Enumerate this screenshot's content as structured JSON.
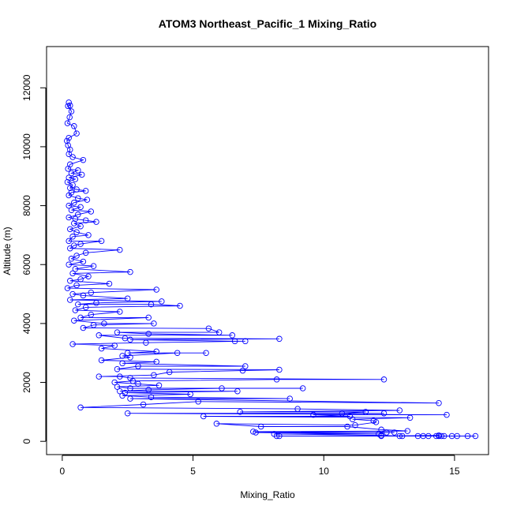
{
  "chart_data": {
    "type": "scatter",
    "title": "ATOM3 Northeast_Pacific_1 Mixing_Ratio",
    "xlabel": "Mixing_Ratio",
    "ylabel": "Altitude (m)",
    "xlim": [
      -0.6,
      16.3
    ],
    "ylim": [
      -450,
      13400
    ],
    "x_ticks": [
      0,
      5,
      10,
      15
    ],
    "y_ticks": [
      0,
      2000,
      4000,
      6000,
      8000,
      10000,
      12000
    ],
    "grid": false,
    "legend": "none",
    "style": {
      "color": "#0000ff",
      "marker": "open-circle",
      "connected": true
    },
    "series": [
      {
        "values_xy": [
          [
            0.25,
            11500
          ],
          [
            0.3,
            11400
          ],
          [
            0.22,
            11380
          ],
          [
            0.35,
            11200
          ],
          [
            0.28,
            11000
          ],
          [
            0.2,
            10800
          ],
          [
            0.45,
            10700
          ],
          [
            0.55,
            10450
          ],
          [
            0.25,
            10300
          ],
          [
            0.18,
            10200
          ],
          [
            0.22,
            10050
          ],
          [
            0.3,
            9900
          ],
          [
            0.25,
            9750
          ],
          [
            0.4,
            9650
          ],
          [
            0.8,
            9550
          ],
          [
            0.3,
            9400
          ],
          [
            0.22,
            9250
          ],
          [
            0.6,
            9200
          ],
          [
            0.35,
            9100
          ],
          [
            0.75,
            9050
          ],
          [
            0.25,
            8950
          ],
          [
            0.5,
            8900
          ],
          [
            0.2,
            8800
          ],
          [
            0.4,
            8700
          ],
          [
            0.3,
            8600
          ],
          [
            0.55,
            8550
          ],
          [
            0.9,
            8500
          ],
          [
            0.35,
            8450
          ],
          [
            0.25,
            8350
          ],
          [
            0.6,
            8250
          ],
          [
            0.95,
            8200
          ],
          [
            0.45,
            8100
          ],
          [
            0.25,
            8000
          ],
          [
            0.7,
            7950
          ],
          [
            0.35,
            7850
          ],
          [
            1.1,
            7800
          ],
          [
            0.6,
            7700
          ],
          [
            0.25,
            7600
          ],
          [
            0.5,
            7550
          ],
          [
            0.9,
            7500
          ],
          [
            1.3,
            7450
          ],
          [
            0.45,
            7400
          ],
          [
            0.7,
            7300
          ],
          [
            0.3,
            7200
          ],
          [
            0.55,
            7100
          ],
          [
            1.0,
            7000
          ],
          [
            0.4,
            6950
          ],
          [
            0.25,
            6800
          ],
          [
            1.5,
            6800
          ],
          [
            0.7,
            6700
          ],
          [
            0.45,
            6650
          ],
          [
            0.3,
            6550
          ],
          [
            2.2,
            6500
          ],
          [
            0.9,
            6400
          ],
          [
            0.55,
            6300
          ],
          [
            0.35,
            6200
          ],
          [
            0.8,
            6100
          ],
          [
            0.25,
            6000
          ],
          [
            1.2,
            5950
          ],
          [
            0.5,
            5850
          ],
          [
            2.6,
            5750
          ],
          [
            0.4,
            5700
          ],
          [
            1.0,
            5600
          ],
          [
            0.7,
            5500
          ],
          [
            0.3,
            5450
          ],
          [
            1.8,
            5350
          ],
          [
            0.55,
            5300
          ],
          [
            0.2,
            5200
          ],
          [
            3.6,
            5150
          ],
          [
            1.1,
            5050
          ],
          [
            0.4,
            5000
          ],
          [
            0.8,
            4950
          ],
          [
            2.5,
            4850
          ],
          [
            0.3,
            4800
          ],
          [
            3.8,
            4750
          ],
          [
            1.3,
            4700
          ],
          [
            0.6,
            4650
          ],
          [
            3.4,
            4650
          ],
          [
            4.5,
            4600
          ],
          [
            0.9,
            4550
          ],
          [
            0.5,
            4450
          ],
          [
            2.2,
            4400
          ],
          [
            1.1,
            4300
          ],
          [
            0.7,
            4200
          ],
          [
            3.3,
            4200
          ],
          [
            0.45,
            4100
          ],
          [
            1.6,
            4000
          ],
          [
            3.5,
            4000
          ],
          [
            1.2,
            3950
          ],
          [
            0.8,
            3850
          ],
          [
            5.6,
            3830
          ],
          [
            6.0,
            3700
          ],
          [
            2.1,
            3700
          ],
          [
            3.3,
            3650
          ],
          [
            6.5,
            3600
          ],
          [
            1.4,
            3600
          ],
          [
            2.4,
            3500
          ],
          [
            8.3,
            3480
          ],
          [
            2.6,
            3450
          ],
          [
            6.6,
            3400
          ],
          [
            7.0,
            3400
          ],
          [
            3.2,
            3350
          ],
          [
            0.4,
            3300
          ],
          [
            2.0,
            3250
          ],
          [
            1.5,
            3150
          ],
          [
            3.6,
            3050
          ],
          [
            2.5,
            3000
          ],
          [
            5.5,
            3000
          ],
          [
            4.4,
            3000
          ],
          [
            2.3,
            2900
          ],
          [
            2.6,
            2850
          ],
          [
            1.5,
            2750
          ],
          [
            3.6,
            2700
          ],
          [
            2.3,
            2650
          ],
          [
            7.0,
            2550
          ],
          [
            2.9,
            2550
          ],
          [
            2.1,
            2450
          ],
          [
            8.3,
            2430
          ],
          [
            6.9,
            2400
          ],
          [
            4.1,
            2350
          ],
          [
            3.5,
            2250
          ],
          [
            1.4,
            2200
          ],
          [
            2.2,
            2200
          ],
          [
            2.6,
            2150
          ],
          [
            12.3,
            2100
          ],
          [
            8.2,
            2100
          ],
          [
            2.7,
            2050
          ],
          [
            2.0,
            2000
          ],
          [
            2.9,
            1950
          ],
          [
            3.7,
            1900
          ],
          [
            2.1,
            1850
          ],
          [
            2.6,
            1800
          ],
          [
            9.2,
            1800
          ],
          [
            6.1,
            1800
          ],
          [
            3.3,
            1750
          ],
          [
            2.2,
            1700
          ],
          [
            6.7,
            1700
          ],
          [
            2.4,
            1650
          ],
          [
            4.9,
            1600
          ],
          [
            2.3,
            1550
          ],
          [
            3.4,
            1500
          ],
          [
            8.7,
            1450
          ],
          [
            2.6,
            1450
          ],
          [
            14.4,
            1300
          ],
          [
            5.2,
            1350
          ],
          [
            3.1,
            1250
          ],
          [
            0.7,
            1150
          ],
          [
            9.0,
            1100
          ],
          [
            12.9,
            1050
          ],
          [
            6.8,
            1000
          ],
          [
            11.6,
            1000
          ],
          [
            10.7,
            950
          ],
          [
            12.3,
            950
          ],
          [
            2.5,
            950
          ],
          [
            14.7,
            900
          ],
          [
            9.6,
            900
          ],
          [
            11.0,
            850
          ],
          [
            5.4,
            850
          ],
          [
            13.3,
            800
          ],
          [
            11.1,
            750
          ],
          [
            11.9,
            700
          ],
          [
            12.0,
            650
          ],
          [
            11.2,
            550
          ],
          [
            5.9,
            600
          ],
          [
            7.6,
            500
          ],
          [
            10.9,
            500
          ],
          [
            12.2,
            400
          ],
          [
            13.2,
            350
          ],
          [
            7.3,
            330
          ],
          [
            12.4,
            300
          ],
          [
            12.7,
            300
          ],
          [
            7.4,
            300
          ],
          [
            12.1,
            250
          ],
          [
            8.1,
            250
          ],
          [
            12.2,
            200
          ],
          [
            12.9,
            180
          ],
          [
            13.0,
            180
          ],
          [
            13.6,
            180
          ],
          [
            13.8,
            180
          ],
          [
            14.0,
            180
          ],
          [
            14.3,
            180
          ],
          [
            14.5,
            180
          ],
          [
            14.6,
            180
          ],
          [
            14.9,
            180
          ],
          [
            15.1,
            180
          ],
          [
            15.5,
            180
          ],
          [
            15.8,
            180
          ],
          [
            8.3,
            180
          ],
          [
            8.2,
            180
          ],
          [
            12.2,
            180
          ],
          [
            14.4,
            200
          ],
          [
            14.4,
            180
          ]
        ]
      }
    ]
  }
}
